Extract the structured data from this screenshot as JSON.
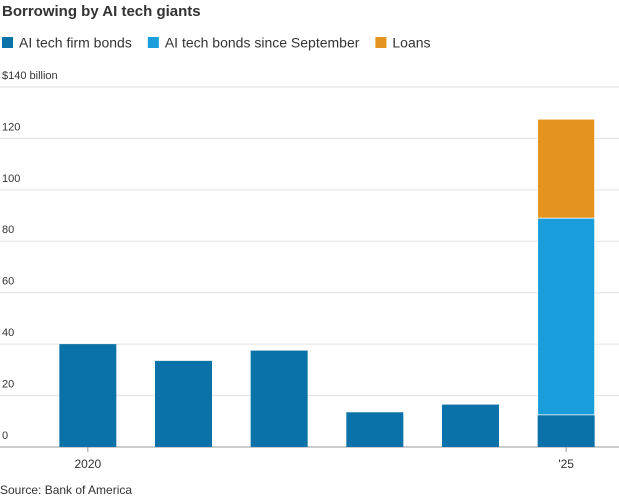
{
  "chart_data": {
    "type": "stacked-bar",
    "title": "Borrowing by AI tech giants",
    "categories": [
      "2020",
      null,
      null,
      null,
      null,
      "'25"
    ],
    "series": [
      {
        "name": "AI tech firm bonds",
        "color": "#0a72a8",
        "values": [
          40,
          33.5,
          37.5,
          13.5,
          16.5,
          12.5
        ]
      },
      {
        "name": "AI tech bonds since September",
        "color": "#1a9ddb",
        "values": [
          null,
          null,
          null,
          null,
          null,
          76.5
        ]
      },
      {
        "name": "Loans",
        "color": "#e5931f",
        "values": [
          null,
          null,
          null,
          null,
          null,
          38.5
        ]
      }
    ],
    "ylim": [
      0,
      140
    ],
    "yticks": [
      0,
      20,
      40,
      60,
      80,
      100,
      120,
      {
        "value": 140,
        "label": "$140 billion"
      }
    ],
    "grid": true,
    "legend": "top",
    "source": "Source: Bank of America"
  }
}
